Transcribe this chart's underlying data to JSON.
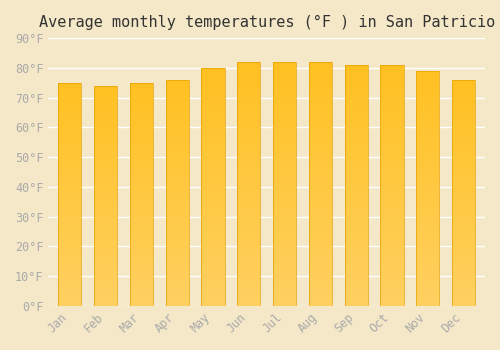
{
  "title": "Average monthly temperatures (°F ) in San Patricio",
  "months": [
    "Jan",
    "Feb",
    "Mar",
    "Apr",
    "May",
    "Jun",
    "Jul",
    "Aug",
    "Sep",
    "Oct",
    "Nov",
    "Dec"
  ],
  "values": [
    75,
    74,
    75,
    76,
    80,
    82,
    82,
    82,
    81,
    81,
    79,
    76
  ],
  "ylim": [
    0,
    90
  ],
  "yticks": [
    0,
    10,
    20,
    30,
    40,
    50,
    60,
    70,
    80,
    90
  ],
  "ytick_labels": [
    "0°F",
    "10°F",
    "20°F",
    "30°F",
    "40°F",
    "50°F",
    "60°F",
    "70°F",
    "80°F",
    "90°F"
  ],
  "bar_color_top": "#FFC020",
  "bar_color_bottom": "#FFD060",
  "bar_edge_color": "#E8A000",
  "background_color": "#F5E8C8",
  "grid_color": "#FFFFFF",
  "title_fontsize": 11,
  "tick_fontsize": 8.5,
  "tick_color": "#AAAAAA",
  "font_family": "monospace"
}
